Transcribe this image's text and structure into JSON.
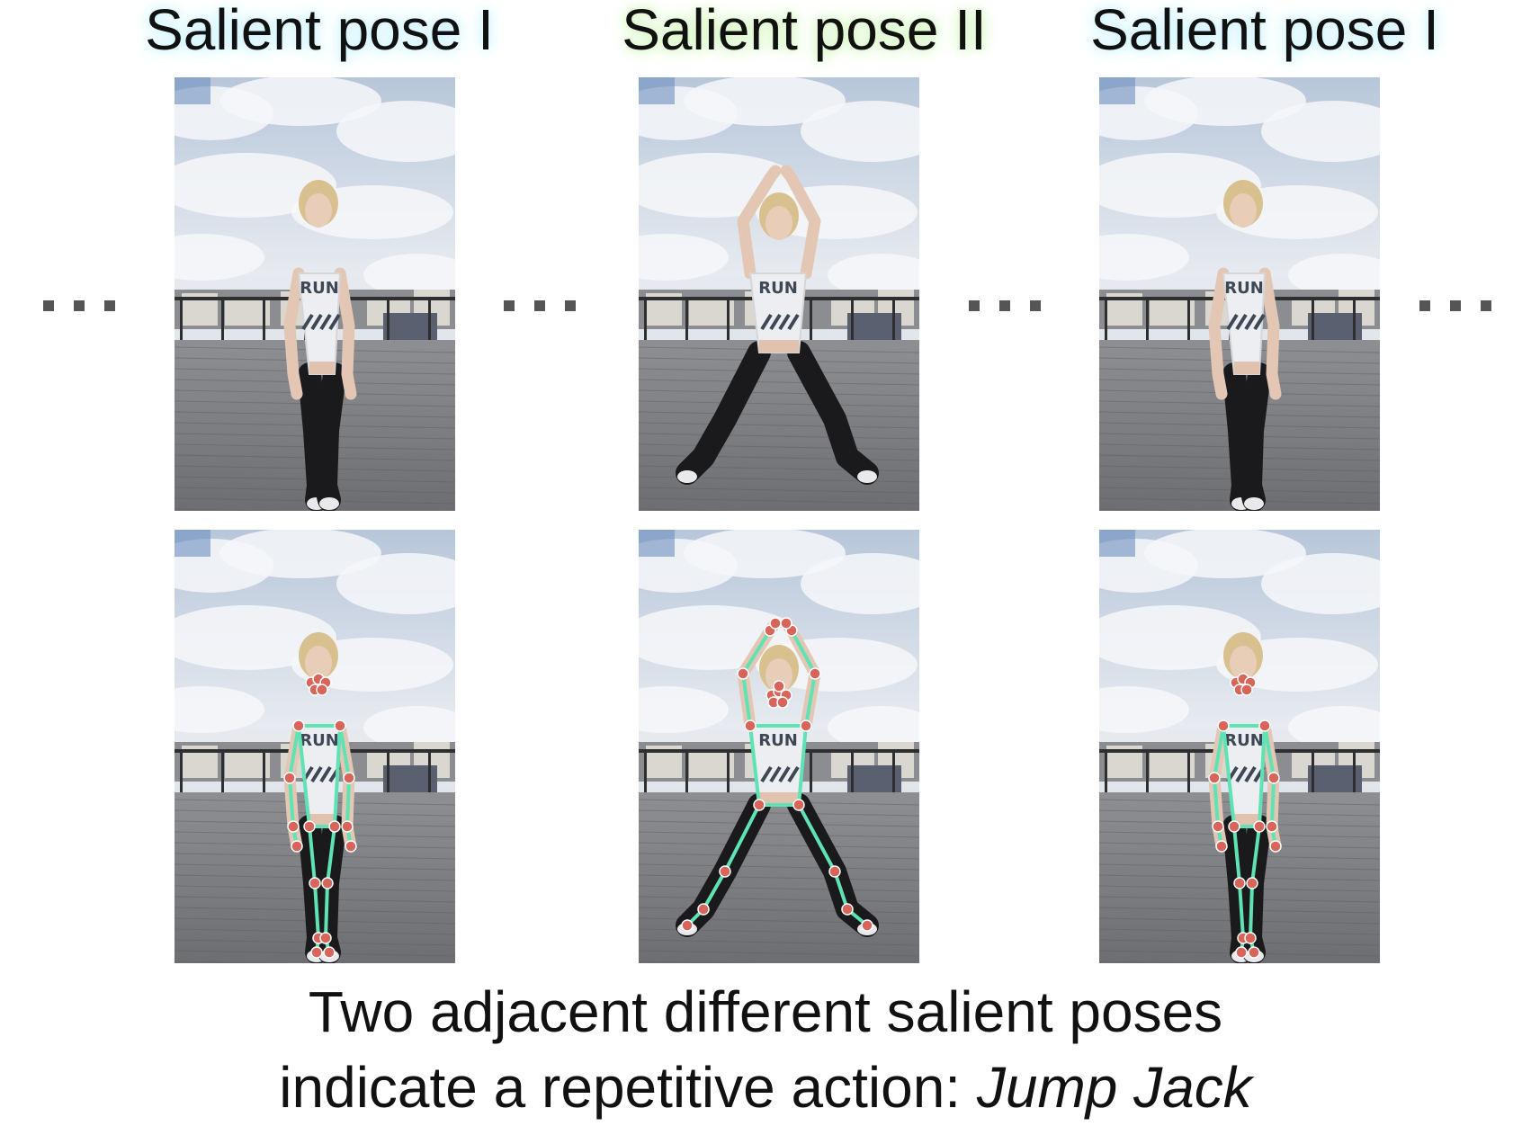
{
  "titles": [
    "Salient pose I",
    "Salient pose II",
    "Salient pose I"
  ],
  "caption": {
    "line1": "Two adjacent different salient poses",
    "line2_prefix": "indicate a repetitive action: ",
    "action": "Jump Jack"
  },
  "colors": {
    "skeleton": "#5fe3b5",
    "joint": "#d9655a",
    "glow_blue": "#bfefff",
    "glow_green": "#c9f3b0"
  },
  "frames": [
    {
      "pose": "stand",
      "skeleton": false
    },
    {
      "pose": "jack",
      "skeleton": false
    },
    {
      "pose": "stand",
      "skeleton": false
    },
    {
      "pose": "stand",
      "skeleton": true
    },
    {
      "pose": "jack",
      "skeleton": true
    },
    {
      "pose": "stand",
      "skeleton": true
    }
  ],
  "shirt_text": "RUN"
}
